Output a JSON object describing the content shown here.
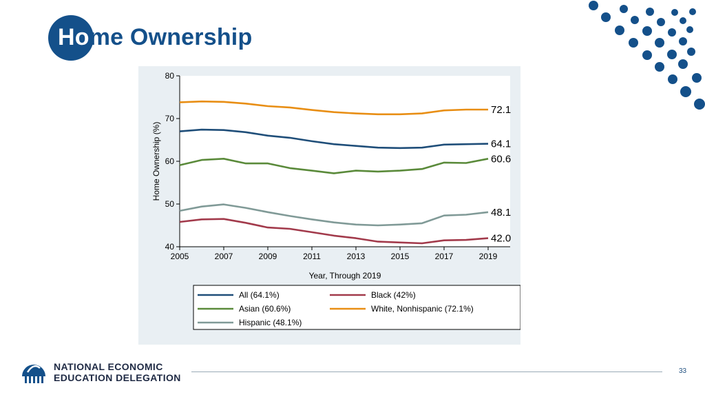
{
  "slide": {
    "title": "Home Ownership",
    "title_highlight": "Ho",
    "title_rest": "me Ownership",
    "page_number": "33",
    "logo_line1": "NATIONAL ECONOMIC",
    "logo_line2": "EDUCATION DELEGATION",
    "brand_color": "#14508a"
  },
  "chart_data": {
    "type": "line",
    "title": "",
    "xlabel": "Year, Through 2019",
    "ylabel": "Home Ownership (%)",
    "xlim": [
      2005,
      2020
    ],
    "ylim": [
      40,
      80
    ],
    "x_ticks": [
      2005,
      2007,
      2009,
      2011,
      2013,
      2015,
      2017,
      2019
    ],
    "y_ticks": [
      40,
      50,
      60,
      70,
      80
    ],
    "x": [
      2005,
      2006,
      2007,
      2008,
      2009,
      2010,
      2011,
      2012,
      2013,
      2014,
      2015,
      2016,
      2017,
      2018,
      2019
    ],
    "series": [
      {
        "name": "All (64.1%)",
        "color": "#1f4e79",
        "end_label": "64.1",
        "values": [
          67.0,
          67.4,
          67.3,
          66.8,
          66.0,
          65.5,
          64.7,
          64.0,
          63.6,
          63.2,
          63.1,
          63.2,
          63.9,
          64.0,
          64.1
        ]
      },
      {
        "name": "Black (42%)",
        "color": "#a23a4b",
        "end_label": "42.0",
        "values": [
          45.8,
          46.4,
          46.5,
          45.6,
          44.5,
          44.2,
          43.4,
          42.6,
          42.0,
          41.2,
          41.0,
          40.8,
          41.5,
          41.6,
          42.0
        ]
      },
      {
        "name": "Asian (60.6%)",
        "color": "#5a8a3a",
        "end_label": "60.6",
        "values": [
          59.1,
          60.3,
          60.6,
          59.5,
          59.5,
          58.4,
          57.8,
          57.2,
          57.8,
          57.6,
          57.8,
          58.2,
          59.7,
          59.6,
          60.6
        ]
      },
      {
        "name": "White, Nonhispanic (72.1%)",
        "color": "#e88e14",
        "end_label": "72.1",
        "values": [
          73.8,
          74.0,
          73.9,
          73.5,
          72.9,
          72.6,
          72.0,
          71.5,
          71.2,
          71.0,
          71.0,
          71.2,
          71.9,
          72.1,
          72.1
        ]
      },
      {
        "name": "Hispanic (48.1%)",
        "color": "#809a97",
        "end_label": "48.1",
        "values": [
          48.4,
          49.4,
          49.9,
          49.1,
          48.1,
          47.2,
          46.4,
          45.7,
          45.2,
          45.0,
          45.2,
          45.5,
          47.3,
          47.5,
          48.1
        ]
      }
    ],
    "legend_order": [
      0,
      1,
      2,
      3,
      4
    ],
    "legend_position": "bottom"
  }
}
